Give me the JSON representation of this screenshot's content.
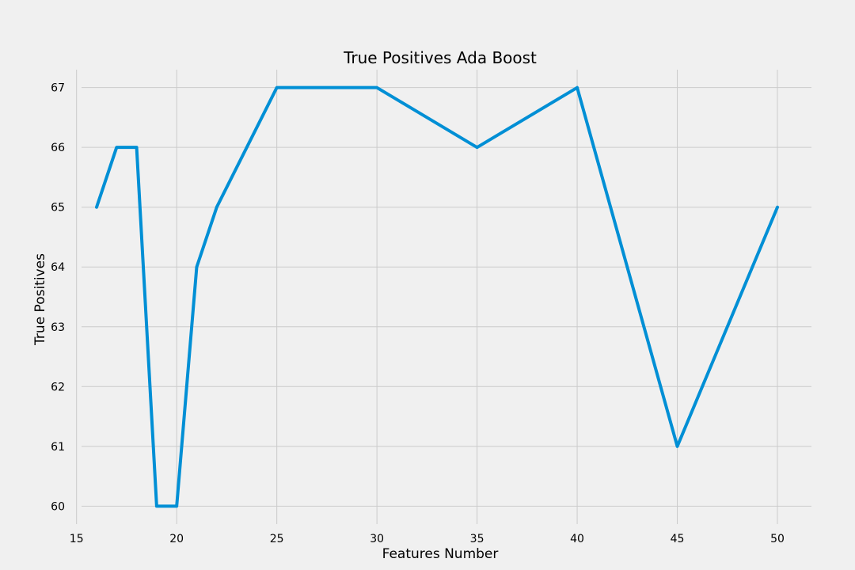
{
  "chart_data": {
    "type": "line",
    "title": "True Positives Ada Boost",
    "xlabel": "Features Number",
    "ylabel": "True Positives",
    "xlim": [
      14.3,
      51.7
    ],
    "ylim": [
      59.7,
      67.3
    ],
    "xticks": [
      15,
      20,
      25,
      30,
      35,
      40,
      45,
      50
    ],
    "yticks": [
      60,
      61,
      62,
      63,
      64,
      65,
      66,
      67
    ],
    "grid": true,
    "series": [
      {
        "color": "#008fd5",
        "x": [
          16,
          17,
          18,
          19,
          20,
          21,
          22,
          25,
          30,
          35,
          40,
          45,
          50
        ],
        "y": [
          65,
          66,
          66,
          60,
          60,
          64,
          65,
          67,
          67,
          66,
          67,
          61,
          65
        ]
      }
    ]
  }
}
